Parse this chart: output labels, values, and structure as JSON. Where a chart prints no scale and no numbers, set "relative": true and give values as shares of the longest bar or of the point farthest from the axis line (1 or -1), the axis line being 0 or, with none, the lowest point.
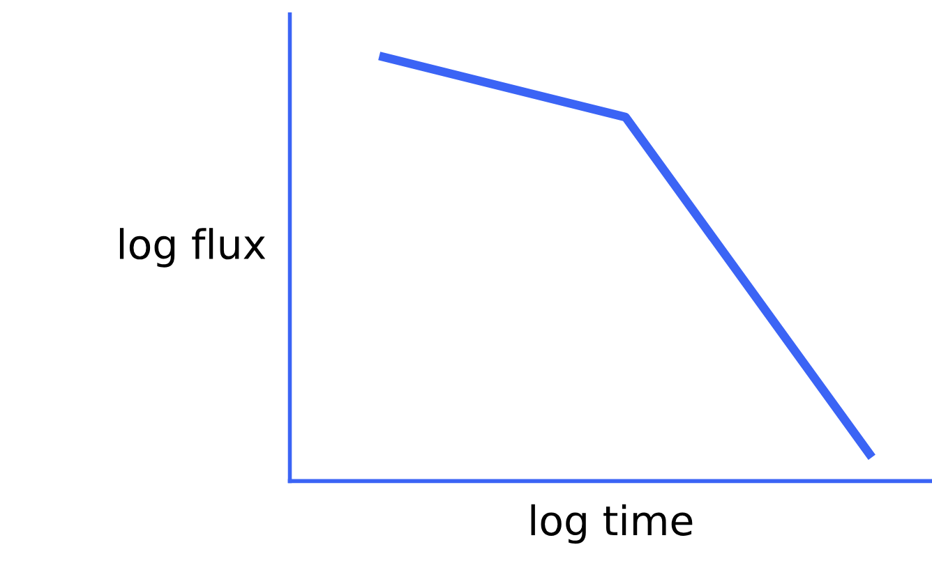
{
  "chart_data": {
    "type": "line",
    "relative": true,
    "xlabel": "log time",
    "ylabel": "log flux",
    "categories": [
      null,
      null,
      null
    ],
    "series": [
      {
        "color": "#3b64f5",
        "values": [
          1,
          0.856,
          0.056
        ]
      }
    ],
    "marker": "none",
    "line_style": "solid",
    "grid": false,
    "legend": false,
    "tick_labels": false
  }
}
